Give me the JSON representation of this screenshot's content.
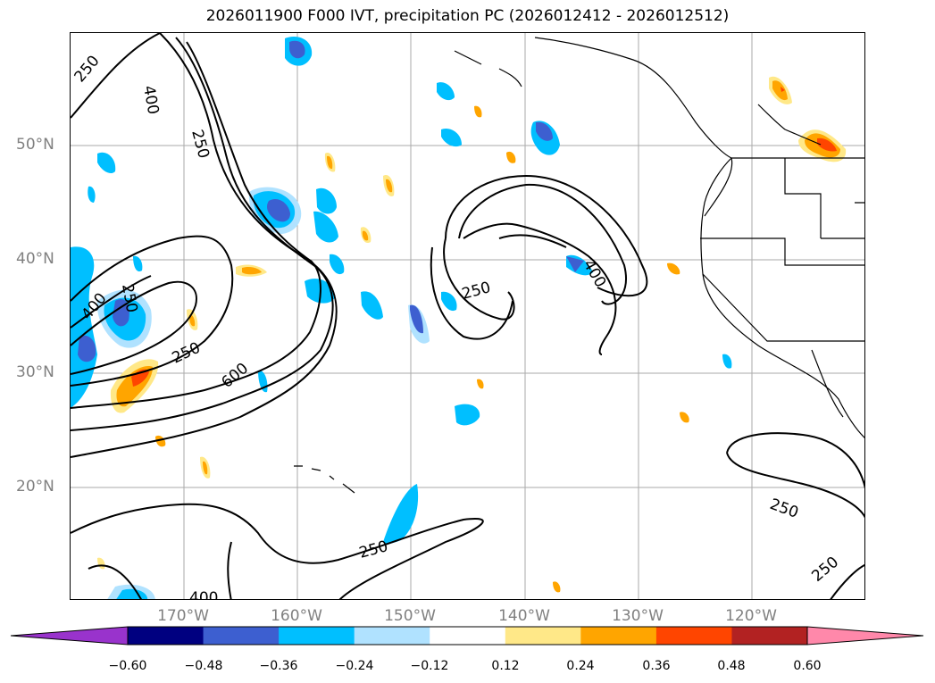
{
  "title": "2026011900 F000 IVT, precipitation PC (2026012412 - 2026012512)",
  "map": {
    "lat_labels": [
      "50°N",
      "40°N",
      "30°N",
      "20°N"
    ],
    "lon_labels": [
      "170°W",
      "160°W",
      "150°W",
      "140°W",
      "130°W",
      "120°W"
    ],
    "contour_labels": [
      "250",
      "400",
      "250",
      "400",
      "250",
      "600",
      "250",
      "250",
      "400",
      "250",
      "250",
      "400"
    ]
  },
  "colorbar": {
    "ticks": [
      "−0.60",
      "−0.48",
      "−0.36",
      "−0.24",
      "−0.12",
      "0.12",
      "0.24",
      "0.36",
      "0.48",
      "0.60"
    ],
    "colors": [
      "#9933cc",
      "#000080",
      "#3d5fd0",
      "#00bfff",
      "#b0e2ff",
      "#ffffff",
      "#ffe888",
      "#ffa500",
      "#ff4500",
      "#b22222",
      "#ff88aa"
    ]
  }
}
